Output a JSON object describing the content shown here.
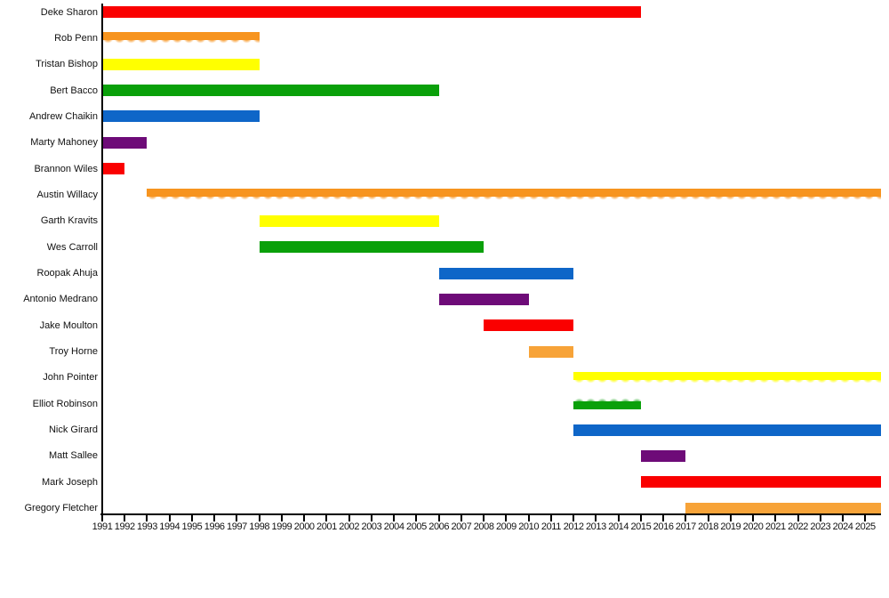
{
  "chart_data": {
    "type": "bar",
    "subtype": "gantt-timeline",
    "orientation": "horizontal",
    "grid": false,
    "legend": "none",
    "xlabel": "",
    "ylabel": "",
    "xlim": [
      1991,
      2025.7
    ],
    "x_tick_years": [
      1991,
      1992,
      1993,
      1994,
      1995,
      1996,
      1997,
      1998,
      1999,
      2000,
      2001,
      2002,
      2003,
      2004,
      2005,
      2006,
      2007,
      2008,
      2009,
      2010,
      2011,
      2012,
      2013,
      2014,
      2015,
      2016,
      2017,
      2018,
      2019,
      2020,
      2021,
      2022,
      2023,
      2024,
      2025
    ],
    "colors": {
      "red": "#FA0000",
      "orange": "#F7941F",
      "orange2": "#F7A338",
      "yellow": "#FFFF00",
      "green": "#0AA00A",
      "blue": "#0E66C8",
      "purple": "#6E0B78",
      "axis": "#000000",
      "label_text": "#111111"
    },
    "members": [
      {
        "name": "Deke Sharon",
        "start": 1991,
        "end": 2015,
        "color": "red",
        "style": "solid"
      },
      {
        "name": "Rob Penn",
        "start": 1991,
        "end": 1998,
        "color": "orange",
        "style": "fade-bottom"
      },
      {
        "name": "Tristan Bishop",
        "start": 1991,
        "end": 1998,
        "color": "yellow",
        "style": "solid"
      },
      {
        "name": "Bert Bacco",
        "start": 1991,
        "end": 2006,
        "color": "green",
        "style": "solid"
      },
      {
        "name": "Andrew Chaikin",
        "start": 1991,
        "end": 1998,
        "color": "blue",
        "style": "solid"
      },
      {
        "name": "Marty Mahoney",
        "start": 1991,
        "end": 1993,
        "color": "purple",
        "style": "solid"
      },
      {
        "name": "Brannon Wiles",
        "start": 1991,
        "end": 1992,
        "color": "red",
        "style": "solid"
      },
      {
        "name": "Austin Willacy",
        "start": 1993,
        "end": "present",
        "color": "orange",
        "style": "fade-bottom"
      },
      {
        "name": "Garth Kravits",
        "start": 1998,
        "end": 2006,
        "color": "yellow",
        "style": "solid"
      },
      {
        "name": "Wes Carroll",
        "start": 1998,
        "end": 2008,
        "color": "green",
        "style": "solid"
      },
      {
        "name": "Roopak Ahuja",
        "start": 2006,
        "end": 2012,
        "color": "blue",
        "style": "solid"
      },
      {
        "name": "Antonio Medrano",
        "start": 2006,
        "end": 2010,
        "color": "purple",
        "style": "solid"
      },
      {
        "name": "Jake Moulton",
        "start": 2008,
        "end": 2012,
        "color": "red",
        "style": "solid"
      },
      {
        "name": "Troy Horne",
        "start": 2010,
        "end": 2012,
        "color": "orange2",
        "style": "solid"
      },
      {
        "name": "John Pointer",
        "start": 2012,
        "end": "present",
        "color": "yellow",
        "style": "fade-bottom"
      },
      {
        "name": "Elliot Robinson",
        "start": 2012,
        "end": 2015,
        "color": "green",
        "style": "fade-top"
      },
      {
        "name": "Nick Girard",
        "start": 2012,
        "end": "present",
        "color": "blue",
        "style": "solid"
      },
      {
        "name": "Matt Sallee",
        "start": 2015,
        "end": 2017,
        "color": "purple",
        "style": "solid"
      },
      {
        "name": "Mark Joseph",
        "start": 2015,
        "end": "present",
        "color": "red",
        "style": "solid"
      },
      {
        "name": "Gregory Fletcher",
        "start": 2017,
        "end": "present",
        "color": "orange2",
        "style": "solid"
      }
    ]
  }
}
